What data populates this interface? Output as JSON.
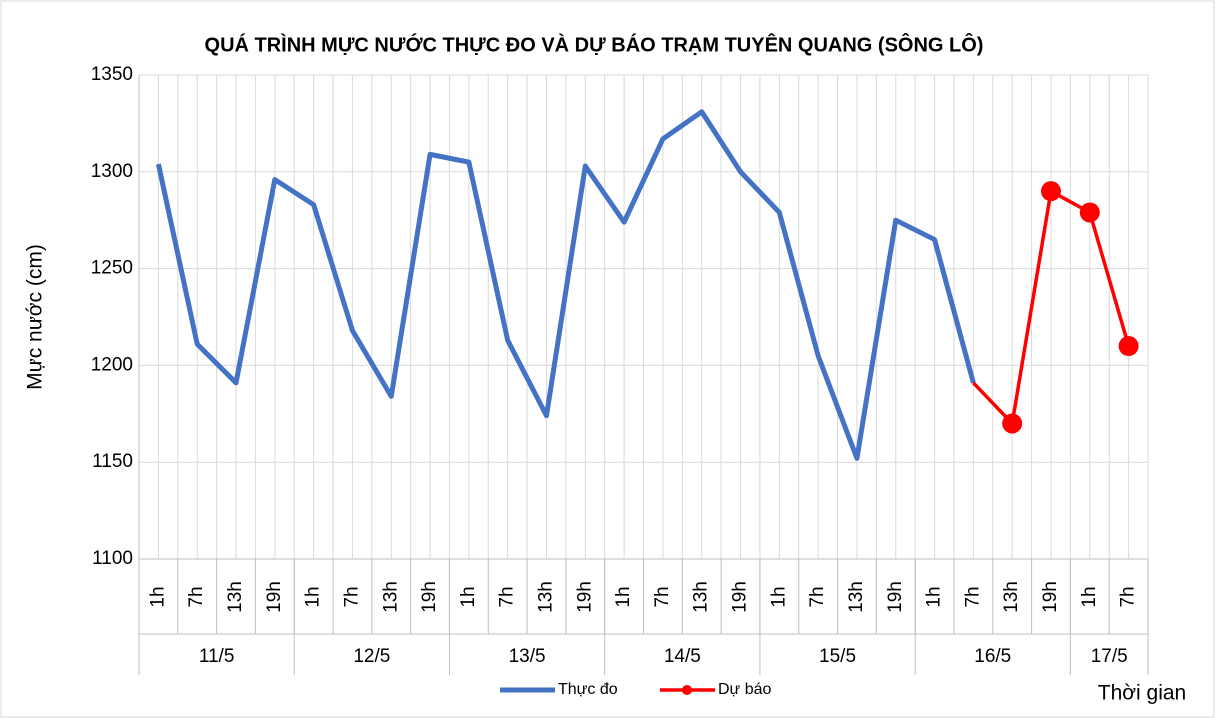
{
  "chart_data": {
    "type": "line",
    "title": "QUÁ TRÌNH MỰC NƯỚC THỰC ĐO VÀ DỰ BÁO TRẠM TUYÊN QUANG (SÔNG LÔ)",
    "ylabel": "Mực nước (cm)",
    "xlabel": "Thời gian",
    "categories": [
      "1h",
      "7h",
      "13h",
      "19h",
      "1h",
      "7h",
      "13h",
      "19h",
      "1h",
      "7h",
      "13h",
      "19h",
      "1h",
      "7h",
      "13h",
      "19h",
      "1h",
      "7h",
      "13h",
      "19h",
      "1h",
      "7h",
      "13h",
      "19h",
      "1h",
      "7h"
    ],
    "groups": [
      {
        "label": "11/5",
        "count": 4
      },
      {
        "label": "12/5",
        "count": 4
      },
      {
        "label": "13/5",
        "count": 4
      },
      {
        "label": "14/5",
        "count": 4
      },
      {
        "label": "15/5",
        "count": 4
      },
      {
        "label": "16/5",
        "count": 4
      },
      {
        "label": "17/5",
        "count": 2
      }
    ],
    "series": [
      {
        "name": "Thực đo",
        "color": "#4472c4",
        "marker": false,
        "values": [
          1304,
          1211,
          1191,
          1296,
          1283,
          1218,
          1184,
          1309,
          1305,
          1213,
          1174,
          1303,
          1274,
          1317,
          1331,
          1300,
          1279,
          1205,
          1152,
          1275,
          1265,
          1191,
          null,
          null,
          null,
          null
        ]
      },
      {
        "name": "Dự báo",
        "color": "#ff0000",
        "marker": true,
        "values": [
          null,
          null,
          null,
          null,
          null,
          null,
          null,
          null,
          null,
          null,
          null,
          null,
          null,
          null,
          null,
          null,
          null,
          null,
          null,
          null,
          null,
          1191,
          1170,
          1290,
          1279,
          1210
        ]
      }
    ],
    "ylim": [
      1100,
      1350
    ],
    "yticks": [
      1100,
      1150,
      1200,
      1250,
      1300,
      1350
    ],
    "grid": true,
    "legend": "bottom"
  }
}
